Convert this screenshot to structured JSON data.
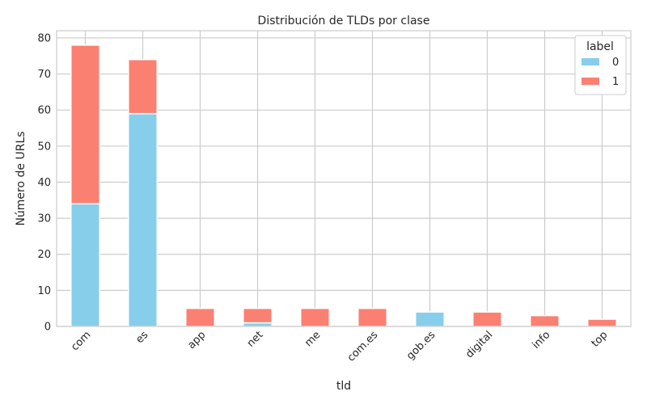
{
  "chart_data": {
    "type": "bar",
    "stacked": true,
    "title": "Distribución de TLDs por clase",
    "xlabel": "tld",
    "ylabel": "Número de URLs",
    "categories": [
      "com",
      "es",
      "app",
      "net",
      "me",
      "com.es",
      "gob.es",
      "digital",
      "info",
      "top"
    ],
    "series": [
      {
        "name": "0",
        "color": "#87ceeb",
        "values": [
          34,
          59,
          0,
          1,
          0,
          0,
          4,
          0,
          0,
          0
        ]
      },
      {
        "name": "1",
        "color": "#fa8072",
        "values": [
          44,
          15,
          5,
          4,
          5,
          5,
          0,
          4,
          3,
          2
        ]
      }
    ],
    "ylim": [
      0,
      82
    ],
    "yticks": [
      0,
      10,
      20,
      30,
      40,
      50,
      60,
      70,
      80
    ],
    "grid": true,
    "legend": {
      "title": "label",
      "position": "top-right"
    }
  }
}
